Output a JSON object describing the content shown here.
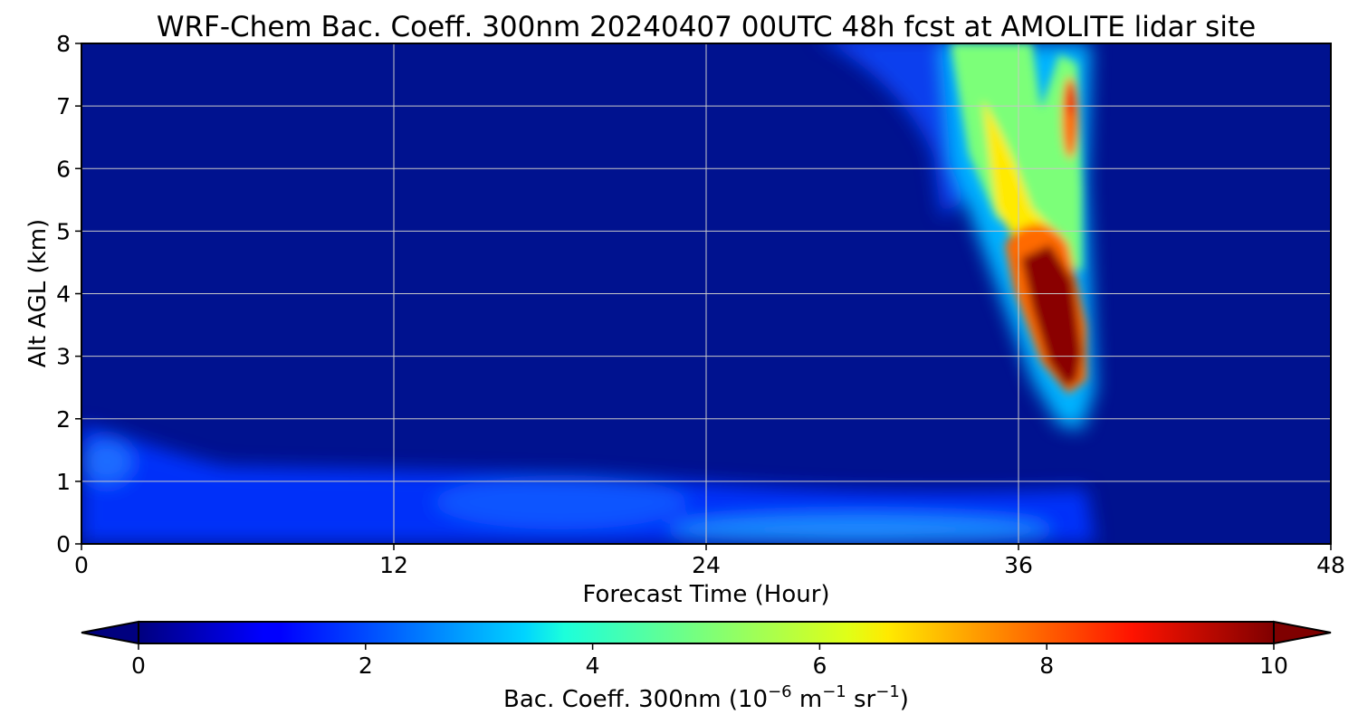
{
  "chart_data": {
    "type": "heatmap",
    "title": "WRF-Chem Bac. Coeff. 300nm  20240407 00UTC 48h fcst at AMOLITE lidar site",
    "xlabel": "Forecast Time (Hour)",
    "ylabel": "Alt AGL (km)",
    "xlim": [
      0,
      48
    ],
    "ylim": [
      0,
      8
    ],
    "x_ticks": [
      "0",
      "12",
      "24",
      "36",
      "48"
    ],
    "y_ticks": [
      "0",
      "1",
      "2",
      "3",
      "4",
      "5",
      "6",
      "7",
      "8"
    ],
    "grid": true,
    "colormap": "jet",
    "colorbar": {
      "label_text": "Bac. Coeff. 300nm  (10",
      "label_exp1": "−6",
      "label_mid": " m",
      "label_exp2": "−1",
      "label_mid2": " sr",
      "label_exp3": "−1",
      "label_end": ")",
      "range": [
        0,
        10
      ],
      "ticks": [
        "0",
        "2",
        "4",
        "6",
        "8",
        "10"
      ],
      "extend": "both"
    },
    "background_value": 0.4,
    "features": [
      {
        "name": "surface layer",
        "x": [
          0,
          38.5
        ],
        "y": [
          0,
          1.2
        ],
        "value": 1.5
      },
      {
        "name": "near-surface maximum",
        "x": [
          24,
          36
        ],
        "y": [
          0,
          0.15
        ],
        "value": 2.6
      },
      {
        "name": "early low-level peak",
        "x": [
          0.5,
          2.5
        ],
        "y": [
          1.0,
          1.6
        ],
        "value": 2.0
      },
      {
        "name": "upper-level plume",
        "x": [
          34,
          38.5
        ],
        "y": [
          4.5,
          8
        ],
        "value": 5.5
      },
      {
        "name": "plume core",
        "x": [
          35.5,
          38.5
        ],
        "y": [
          2.4,
          5.2
        ],
        "value": 10.0
      },
      {
        "name": "upper maximum",
        "x": [
          37.6,
          38.4
        ],
        "y": [
          6.2,
          7.4
        ],
        "value": 8.5
      }
    ]
  }
}
